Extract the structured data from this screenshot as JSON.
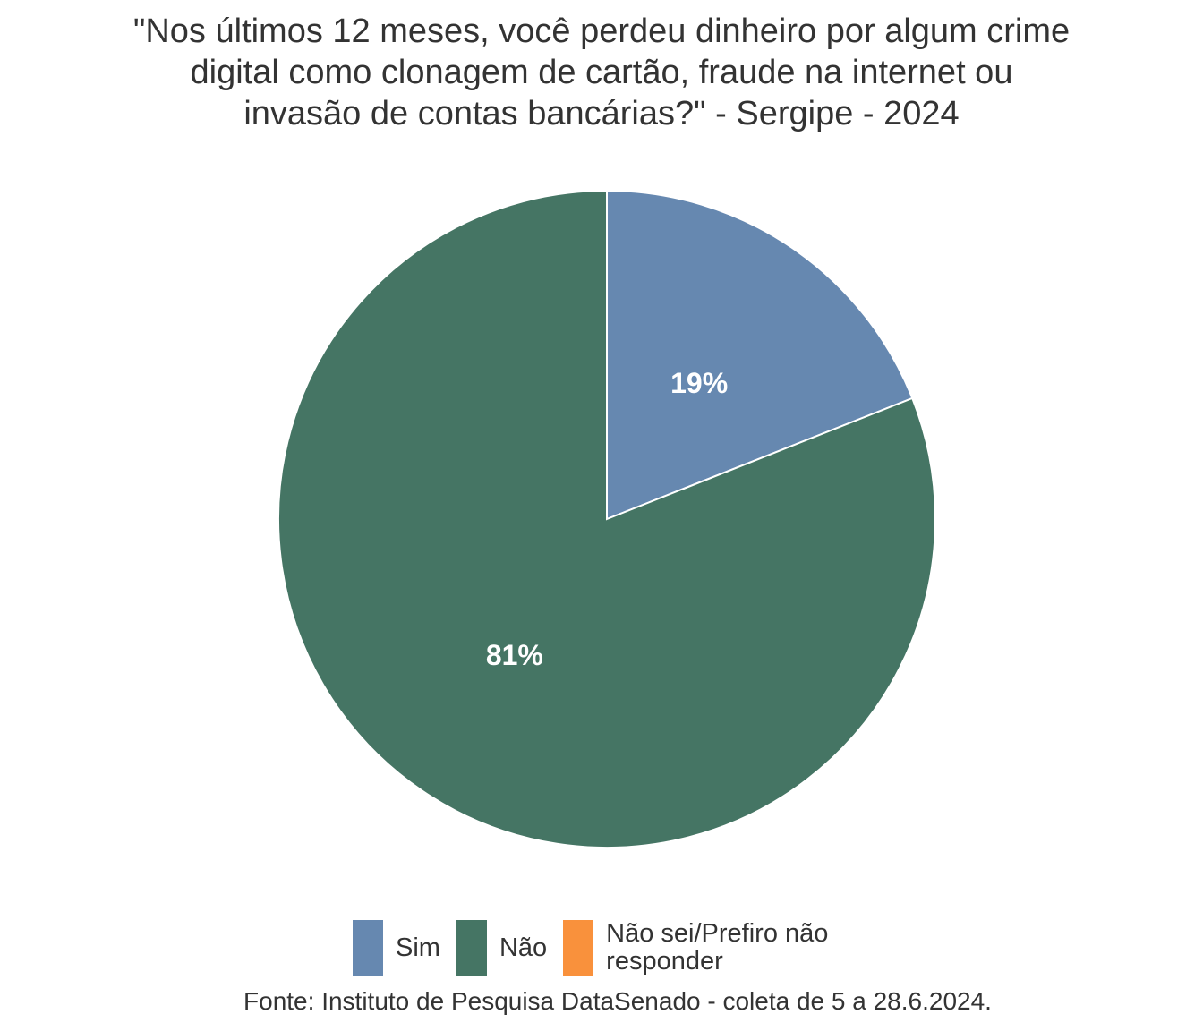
{
  "chart_data": {
    "type": "pie",
    "title_lines": [
      "\"Nos últimos 12 meses, você perdeu dinheiro por algum crime",
      "digital como clonagem de cartão, fraude na internet ou",
      "invasão de contas bancárias?\" - Sergipe - 2024"
    ],
    "slices": [
      {
        "label": "Sim",
        "value": 19,
        "value_label": "19%",
        "color": "#6688B0"
      },
      {
        "label": "Não",
        "value": 81,
        "value_label": "81%",
        "color": "#457564"
      },
      {
        "label": "Não sei/Prefiro não responder",
        "value": 0,
        "value_label": "",
        "color": "#F9913C"
      }
    ],
    "legend_position": "bottom",
    "caption": "Fonte: Instituto de Pesquisa DataSenado - coleta de 5 a 28.6.2024."
  }
}
